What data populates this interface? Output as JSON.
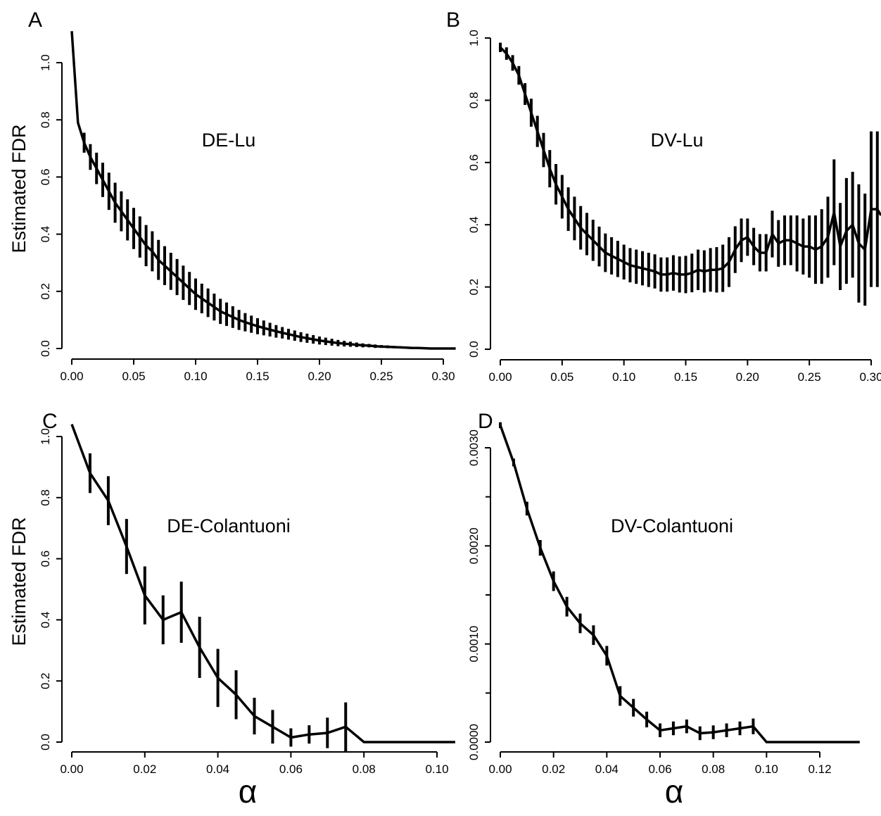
{
  "chart_data": [
    {
      "type": "line",
      "panel_label": "A",
      "annotation": "DE-Lu",
      "xlabel": "",
      "ylabel": "Estimated FDR",
      "xlim": [
        0,
        0.31
      ],
      "ylim": [
        0,
        1.12
      ],
      "x_ticks": [
        0.0,
        0.05,
        0.1,
        0.15,
        0.2,
        0.25,
        0.3
      ],
      "x_tick_labels": [
        "0.00",
        "0.05",
        "0.10",
        "0.15",
        "0.20",
        "0.25",
        "0.30"
      ],
      "y_ticks": [
        0.0,
        0.2,
        0.4,
        0.6,
        0.8,
        1.0
      ],
      "y_tick_labels": [
        "0.0",
        "0.2",
        "0.4",
        "0.6",
        "0.8",
        "1.0"
      ],
      "series": [
        {
          "x": [
            0.0,
            0.005,
            0.01,
            0.015,
            0.02,
            0.025,
            0.03,
            0.035,
            0.04,
            0.045,
            0.05,
            0.055,
            0.06,
            0.065,
            0.07,
            0.075,
            0.08,
            0.085,
            0.09,
            0.095,
            0.1,
            0.105,
            0.11,
            0.115,
            0.12,
            0.125,
            0.13,
            0.135,
            0.14,
            0.145,
            0.15,
            0.155,
            0.16,
            0.165,
            0.17,
            0.175,
            0.18,
            0.185,
            0.19,
            0.195,
            0.2,
            0.205,
            0.21,
            0.215,
            0.22,
            0.225,
            0.23,
            0.235,
            0.24,
            0.245,
            0.25,
            0.255,
            0.26,
            0.265,
            0.27,
            0.275,
            0.28,
            0.285,
            0.29,
            0.295,
            0.3,
            0.305,
            0.31
          ],
          "y": [
            1.11,
            0.79,
            0.72,
            0.67,
            0.63,
            0.59,
            0.55,
            0.51,
            0.48,
            0.45,
            0.42,
            0.39,
            0.36,
            0.34,
            0.31,
            0.29,
            0.27,
            0.25,
            0.23,
            0.21,
            0.19,
            0.175,
            0.16,
            0.145,
            0.13,
            0.12,
            0.11,
            0.1,
            0.092,
            0.085,
            0.078,
            0.072,
            0.066,
            0.06,
            0.055,
            0.05,
            0.045,
            0.04,
            0.036,
            0.032,
            0.028,
            0.025,
            0.022,
            0.019,
            0.017,
            0.015,
            0.013,
            0.011,
            0.01,
            0.008,
            0.007,
            0.006,
            0.005,
            0.004,
            0.003,
            0.002,
            0.002,
            0.001,
            0.0,
            0.0,
            0.0,
            0.0,
            0.0
          ],
          "err": [
            0,
            0,
            0.035,
            0.045,
            0.055,
            0.06,
            0.065,
            0.07,
            0.07,
            0.072,
            0.072,
            0.072,
            0.072,
            0.07,
            0.07,
            0.068,
            0.065,
            0.063,
            0.06,
            0.058,
            0.055,
            0.052,
            0.05,
            0.047,
            0.044,
            0.041,
            0.038,
            0.035,
            0.032,
            0.03,
            0.028,
            0.026,
            0.024,
            0.022,
            0.02,
            0.019,
            0.018,
            0.017,
            0.016,
            0.015,
            0.014,
            0.013,
            0.012,
            0.011,
            0.01,
            0.009,
            0.008,
            0.007,
            0.006,
            0.006,
            0.005,
            0.005,
            0.004,
            0.004,
            0.003,
            0.003,
            0.002,
            0.002,
            0,
            0,
            0,
            0,
            0
          ]
        }
      ]
    },
    {
      "type": "line",
      "panel_label": "B",
      "annotation": "DV-Lu",
      "xlabel": "",
      "ylabel": "",
      "xlim": [
        0,
        0.31
      ],
      "ylim": [
        0,
        1.0
      ],
      "x_ticks": [
        0.0,
        0.05,
        0.1,
        0.15,
        0.2,
        0.25,
        0.3
      ],
      "x_tick_labels": [
        "0.00",
        "0.05",
        "0.10",
        "0.15",
        "0.20",
        "0.25",
        "0.30"
      ],
      "y_ticks": [
        0.0,
        0.2,
        0.4,
        0.6,
        0.8,
        1.0
      ],
      "y_tick_labels": [
        "0.0",
        "0.2",
        "0.4",
        "0.6",
        "0.8",
        "1.0"
      ],
      "series": [
        {
          "x": [
            0.0,
            0.005,
            0.01,
            0.015,
            0.02,
            0.025,
            0.03,
            0.035,
            0.04,
            0.045,
            0.05,
            0.055,
            0.06,
            0.065,
            0.07,
            0.075,
            0.08,
            0.085,
            0.09,
            0.095,
            0.1,
            0.105,
            0.11,
            0.115,
            0.12,
            0.125,
            0.13,
            0.135,
            0.14,
            0.145,
            0.15,
            0.155,
            0.16,
            0.165,
            0.17,
            0.175,
            0.18,
            0.185,
            0.19,
            0.195,
            0.2,
            0.205,
            0.21,
            0.215,
            0.22,
            0.225,
            0.23,
            0.235,
            0.24,
            0.245,
            0.25,
            0.255,
            0.26,
            0.265,
            0.27,
            0.275,
            0.28,
            0.285,
            0.29,
            0.295,
            0.3,
            0.305,
            0.31
          ],
          "y": [
            0.97,
            0.95,
            0.92,
            0.88,
            0.82,
            0.76,
            0.7,
            0.64,
            0.58,
            0.53,
            0.49,
            0.45,
            0.42,
            0.39,
            0.37,
            0.35,
            0.33,
            0.31,
            0.3,
            0.29,
            0.28,
            0.27,
            0.265,
            0.26,
            0.255,
            0.25,
            0.24,
            0.24,
            0.245,
            0.24,
            0.24,
            0.245,
            0.255,
            0.25,
            0.255,
            0.255,
            0.26,
            0.28,
            0.32,
            0.35,
            0.36,
            0.33,
            0.31,
            0.31,
            0.37,
            0.34,
            0.35,
            0.35,
            0.34,
            0.33,
            0.33,
            0.32,
            0.33,
            0.36,
            0.44,
            0.33,
            0.38,
            0.4,
            0.34,
            0.32,
            0.45,
            0.45,
            0.43
          ],
          "err": [
            0.015,
            0.02,
            0.025,
            0.03,
            0.035,
            0.045,
            0.05,
            0.055,
            0.06,
            0.065,
            0.07,
            0.07,
            0.07,
            0.07,
            0.068,
            0.066,
            0.064,
            0.062,
            0.06,
            0.058,
            0.056,
            0.055,
            0.055,
            0.055,
            0.055,
            0.055,
            0.055,
            0.055,
            0.057,
            0.058,
            0.06,
            0.062,
            0.065,
            0.068,
            0.07,
            0.073,
            0.076,
            0.08,
            0.075,
            0.07,
            0.06,
            0.06,
            0.06,
            0.06,
            0.075,
            0.075,
            0.08,
            0.08,
            0.09,
            0.09,
            0.1,
            0.11,
            0.12,
            0.13,
            0.17,
            0.14,
            0.17,
            0.17,
            0.19,
            0.18,
            0.25,
            0.25,
            0.25
          ]
        }
      ]
    },
    {
      "type": "line",
      "panel_label": "C",
      "annotation": "DE-Colantuoni",
      "xlabel": "α",
      "ylabel": "Estimated FDR",
      "xlim": [
        0,
        0.105
      ],
      "ylim": [
        0,
        1.05
      ],
      "x_ticks": [
        0.0,
        0.02,
        0.04,
        0.06,
        0.08,
        0.1
      ],
      "x_tick_labels": [
        "0.00",
        "0.02",
        "0.04",
        "0.06",
        "0.08",
        "0.10"
      ],
      "y_ticks": [
        0.0,
        0.2,
        0.4,
        0.6,
        0.8,
        1.0
      ],
      "y_tick_labels": [
        "0.0",
        "0.2",
        "0.4",
        "0.6",
        "0.8",
        "1.0"
      ],
      "series": [
        {
          "x": [
            0.0,
            0.005,
            0.01,
            0.015,
            0.02,
            0.025,
            0.03,
            0.035,
            0.04,
            0.045,
            0.05,
            0.055,
            0.06,
            0.065,
            0.07,
            0.075,
            0.08,
            0.085,
            0.09,
            0.095,
            0.1,
            0.105
          ],
          "y": [
            1.04,
            0.88,
            0.79,
            0.64,
            0.48,
            0.4,
            0.425,
            0.31,
            0.21,
            0.155,
            0.085,
            0.05,
            0.015,
            0.025,
            0.03,
            0.05,
            0.0,
            0.0,
            0.0,
            0.0,
            0.0,
            0.0
          ],
          "err": [
            0,
            0.065,
            0.08,
            0.09,
            0.095,
            0.08,
            0.1,
            0.1,
            0.095,
            0.08,
            0.06,
            0.055,
            0.03,
            0.03,
            0.05,
            0.08,
            0,
            0,
            0,
            0,
            0,
            0
          ]
        }
      ]
    },
    {
      "type": "line",
      "panel_label": "D",
      "annotation": "DV-Colantuoni",
      "xlabel": "α",
      "ylabel": "",
      "xlim": [
        0,
        0.135
      ],
      "ylim": [
        0,
        0.00325
      ],
      "x_ticks": [
        0.0,
        0.02,
        0.04,
        0.06,
        0.08,
        0.1,
        0.12
      ],
      "x_tick_labels": [
        "0.00",
        "0.02",
        "0.04",
        "0.06",
        "0.08",
        "0.10",
        "0.12"
      ],
      "y_ticks": [
        0.0,
        0.001,
        0.002,
        0.003
      ],
      "y_tick_labels": [
        "0.0000",
        "0.0010",
        "0.0020",
        "0.0030"
      ],
      "minor_y_ticks": [
        0.0005,
        0.0015,
        0.0025
      ],
      "series": [
        {
          "x": [
            0.0,
            0.005,
            0.01,
            0.015,
            0.02,
            0.025,
            0.03,
            0.035,
            0.04,
            0.045,
            0.05,
            0.055,
            0.06,
            0.065,
            0.07,
            0.075,
            0.08,
            0.085,
            0.09,
            0.095,
            0.1,
            0.105,
            0.11,
            0.115,
            0.12,
            0.125,
            0.13,
            0.135
          ],
          "y": [
            0.00323,
            0.00285,
            0.00238,
            0.00198,
            0.00164,
            0.00138,
            0.00121,
            0.00109,
            0.00088,
            0.00047,
            0.00035,
            0.00023,
            0.00012,
            0.00014,
            0.00016,
            9e-05,
            0.0001,
            0.00012,
            0.00014,
            0.00016,
            0.0,
            0.0,
            0.0,
            0.0,
            0.0,
            0.0,
            0.0,
            0.0
          ],
          "err": [
            3e-05,
            4e-05,
            7e-05,
            8e-05,
            0.0001,
            0.0001,
            0.0001,
            0.0001,
            0.0001,
            0.0001,
            9e-05,
            8e-05,
            7e-05,
            7e-05,
            7e-05,
            7e-05,
            7e-05,
            7e-05,
            7e-05,
            8e-05,
            0,
            0,
            0,
            0,
            0,
            0,
            0,
            0
          ]
        }
      ]
    }
  ]
}
